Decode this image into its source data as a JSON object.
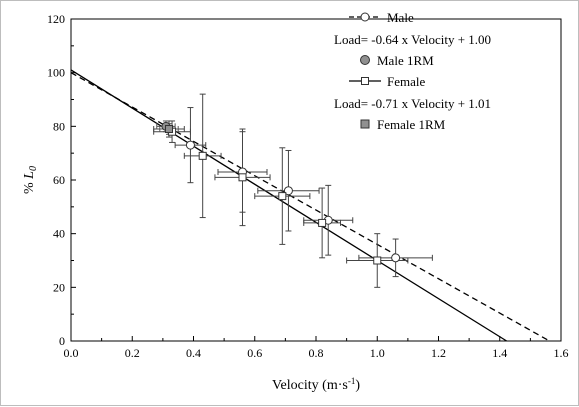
{
  "chart_data": {
    "type": "scatter",
    "xlabel_main": "Velocity",
    "xlabel_unit": "(m·s",
    "xlabel_sup": "-1",
    "xlabel_close": ")",
    "ylabel_prefix": "% ",
    "ylabel_var": "L",
    "ylabel_sub": "0",
    "xlim": [
      0.0,
      1.6
    ],
    "ylim": [
      0,
      120
    ],
    "xticks": [
      0.0,
      0.2,
      0.4,
      0.6,
      0.8,
      1.0,
      1.2,
      1.4,
      1.6
    ],
    "xtick_labels": [
      "0.0",
      "0.2",
      "0.4",
      "0.6",
      "0.8",
      "1.0",
      "1.2",
      "1.4",
      "1.6"
    ],
    "yticks": [
      0,
      20,
      40,
      60,
      80,
      100,
      120
    ],
    "ytick_labels": [
      "0",
      "20",
      "40",
      "60",
      "80",
      "100",
      "120"
    ],
    "legend_position": "top-right",
    "series": [
      {
        "name": "Male",
        "marker": "circle",
        "line_style": "dashed",
        "equation": "Load= -0.64 x Velocity + 1.00",
        "fit": {
          "slope": -0.64,
          "intercept": 1.0
        },
        "points": [
          {
            "x": 0.32,
            "y": 79,
            "xerr": 0.05,
            "yerr": 3
          },
          {
            "x": 0.39,
            "y": 73,
            "xerr": 0.05,
            "yerr": 14
          },
          {
            "x": 0.56,
            "y": 63,
            "xerr": 0.08,
            "yerr": 15
          },
          {
            "x": 0.71,
            "y": 56,
            "xerr": 0.1,
            "yerr": 15
          },
          {
            "x": 0.84,
            "y": 45,
            "xerr": 0.08,
            "yerr": 13
          },
          {
            "x": 1.06,
            "y": 31,
            "xerr": 0.12,
            "yerr": 7
          }
        ]
      },
      {
        "name": "Male 1RM",
        "marker": "circle-filled",
        "color": "#909090",
        "points": [
          {
            "x": 0.31,
            "y": 80,
            "xerr": 0.03,
            "yerr": 2
          }
        ]
      },
      {
        "name": "Female",
        "marker": "square",
        "line_style": "solid",
        "equation": "Load= -0.71 x Velocity + 1.01",
        "fit": {
          "slope": -0.71,
          "intercept": 1.01
        },
        "points": [
          {
            "x": 0.33,
            "y": 78,
            "xerr": 0.06,
            "yerr": 4
          },
          {
            "x": 0.43,
            "y": 69,
            "xerr": 0.06,
            "yerr": 23
          },
          {
            "x": 0.56,
            "y": 61,
            "xerr": 0.09,
            "yerr": 18
          },
          {
            "x": 0.69,
            "y": 54,
            "xerr": 0.09,
            "yerr": 18
          },
          {
            "x": 0.82,
            "y": 44,
            "xerr": 0.06,
            "yerr": 13
          },
          {
            "x": 1.0,
            "y": 30,
            "xerr": 0.1,
            "yerr": 10
          }
        ]
      },
      {
        "name": "Female 1RM",
        "marker": "square-filled",
        "color": "#909090",
        "points": [
          {
            "x": 0.32,
            "y": 79,
            "xerr": 0.03,
            "yerr": 2
          }
        ]
      }
    ]
  }
}
